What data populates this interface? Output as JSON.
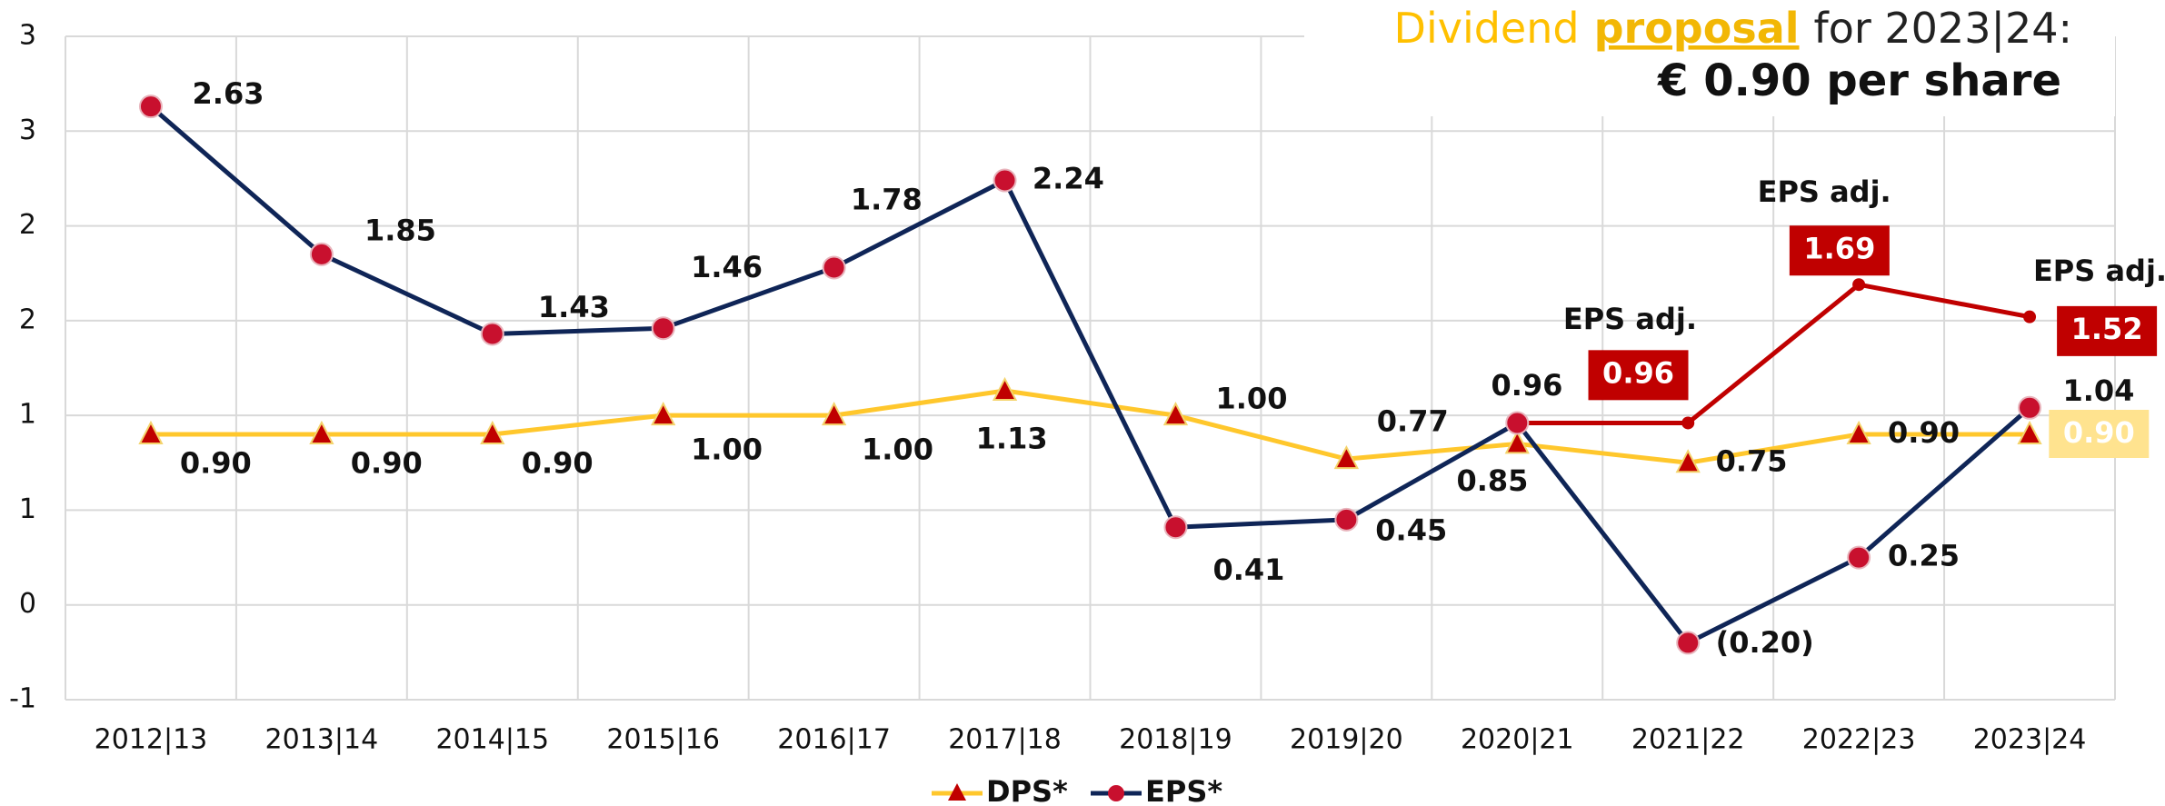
{
  "chart_data": {
    "type": "line",
    "title": {
      "lead": "Dividend",
      "emphasis": "proposal",
      "tail": "for 2023|24:"
    },
    "subtitle": "€ 0.90 per share",
    "categories": [
      "2012|13",
      "2013|14",
      "2014|15",
      "2015|16",
      "2016|17",
      "2017|18",
      "2018|19",
      "2019|20",
      "2020|21",
      "2021|22",
      "2022|23",
      "2023|24"
    ],
    "series": [
      {
        "name": "DPS*",
        "color": "#FFC72C",
        "marker_color": "#C00000",
        "values": [
          0.9,
          0.9,
          0.9,
          1.0,
          1.0,
          1.13,
          1.0,
          0.77,
          0.85,
          0.75,
          0.9,
          0.9
        ],
        "value_labels": [
          "0.90",
          "0.90",
          "0.90",
          "1.00",
          "1.00",
          "1.13",
          "1.00",
          "0.77",
          "0.85",
          "0.75",
          "0.90",
          "0.90"
        ]
      },
      {
        "name": "EPS*",
        "color": "#0F2557",
        "marker_color": "#C8102E",
        "values": [
          2.63,
          1.85,
          1.43,
          1.46,
          1.78,
          2.24,
          0.41,
          0.45,
          0.96,
          -0.2,
          0.25,
          1.04
        ],
        "value_labels": [
          "2.63",
          "1.85",
          "1.43",
          "1.46",
          "1.78",
          "2.24",
          "0.41",
          "0.45",
          "0.96",
          "(0.20)",
          "0.25",
          "1.04"
        ]
      },
      {
        "name": "EPS adj.",
        "color": "#C00000",
        "values": [
          null,
          null,
          null,
          null,
          null,
          null,
          null,
          null,
          0.96,
          0.96,
          1.69,
          1.52
        ],
        "value_labels": [
          null,
          null,
          null,
          null,
          null,
          null,
          null,
          null,
          null,
          "0.96",
          "1.69",
          "1.52"
        ]
      }
    ],
    "annotations": [
      "EPS adj.",
      "EPS adj.",
      "EPS adj."
    ],
    "ylim": [
      -0.5,
      3.0
    ],
    "yticks": [
      {
        "value": -0.5,
        "label": "-1"
      },
      0,
      {
        "value": 0.5,
        "label": "1"
      },
      1,
      {
        "value": 1.5,
        "label": "2"
      },
      2,
      {
        "value": 2.5,
        "label": "3"
      },
      3
    ],
    "grid": true,
    "legend": "bottom"
  }
}
